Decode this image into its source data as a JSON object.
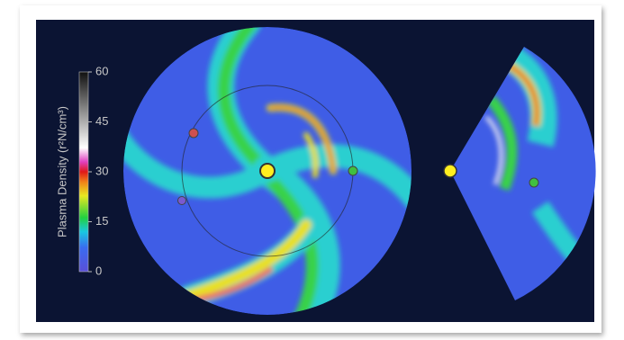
{
  "colorbar": {
    "label": "Plasma Density (r²N/cm³)",
    "lim": [
      0,
      60
    ],
    "ticks": [
      0,
      15,
      30,
      45,
      60
    ]
  }
}
